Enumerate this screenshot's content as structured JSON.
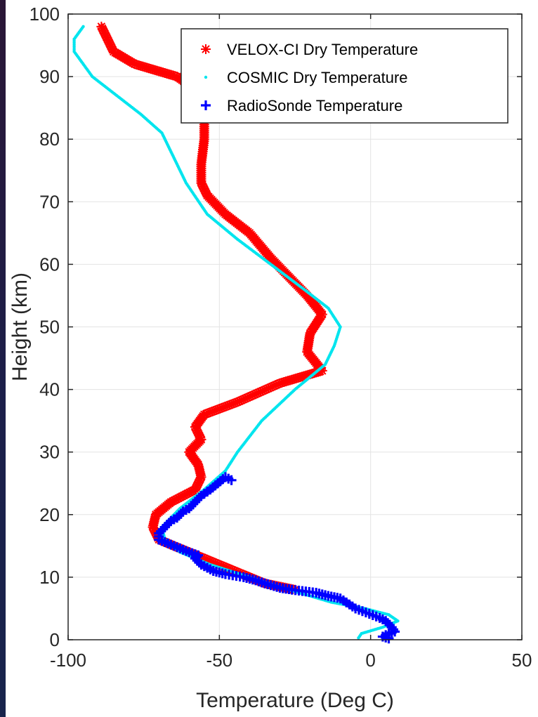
{
  "chart_data": {
    "type": "scatter",
    "title": "",
    "xlabel": "Temperature (Deg C)",
    "ylabel": "Height (km)",
    "xlim": [
      -100,
      50
    ],
    "ylim": [
      0,
      100
    ],
    "xticks": [
      -100,
      -50,
      0,
      50
    ],
    "yticks": [
      0,
      10,
      20,
      30,
      40,
      50,
      60,
      70,
      80,
      90,
      100
    ],
    "xtick_labels": [
      "-100",
      "-50",
      "0",
      "50"
    ],
    "ytick_labels": [
      "0",
      "10",
      "20",
      "30",
      "40",
      "50",
      "60",
      "70",
      "80",
      "90",
      "100"
    ],
    "grid": true,
    "legend_position": "top-right",
    "series": [
      {
        "name": "VELOX-CI Dry Temperature",
        "marker": "asterisk",
        "color": "#ff0000",
        "points": [
          [
            -89,
            98
          ],
          [
            -85,
            94
          ],
          [
            -78,
            92
          ],
          [
            -64,
            90
          ],
          [
            -58,
            88
          ],
          [
            -55,
            85
          ],
          [
            -55,
            80
          ],
          [
            -56,
            76
          ],
          [
            -56,
            73
          ],
          [
            -54,
            71
          ],
          [
            -48,
            68
          ],
          [
            -40,
            65
          ],
          [
            -33,
            61
          ],
          [
            -27,
            58
          ],
          [
            -21,
            55
          ],
          [
            -16,
            52
          ],
          [
            -20,
            49
          ],
          [
            -21,
            46
          ],
          [
            -16,
            43
          ],
          [
            -30,
            41
          ],
          [
            -44,
            38
          ],
          [
            -55,
            36
          ],
          [
            -58,
            34
          ],
          [
            -56,
            32
          ],
          [
            -60,
            30
          ],
          [
            -57,
            28
          ],
          [
            -56,
            26
          ],
          [
            -58,
            24
          ],
          [
            -66,
            22
          ],
          [
            -71,
            20
          ],
          [
            -72,
            18
          ],
          [
            -70,
            16
          ],
          [
            -65,
            15
          ],
          [
            -55,
            13
          ],
          [
            -45,
            11
          ],
          [
            -35,
            9
          ],
          [
            -25,
            8
          ]
        ]
      },
      {
        "name": "COSMIC Dry Temperature",
        "marker": "dot",
        "color": "#00e5ee",
        "points": [
          [
            -95,
            98
          ],
          [
            -98,
            96
          ],
          [
            -98,
            94
          ],
          [
            -92,
            90
          ],
          [
            -84,
            87
          ],
          [
            -76,
            84
          ],
          [
            -69,
            81
          ],
          [
            -65,
            77
          ],
          [
            -61,
            73
          ],
          [
            -54,
            68
          ],
          [
            -44,
            64
          ],
          [
            -33,
            60
          ],
          [
            -22,
            56
          ],
          [
            -14,
            53
          ],
          [
            -10,
            50
          ],
          [
            -12,
            47
          ],
          [
            -15,
            44
          ],
          [
            -25,
            40
          ],
          [
            -36,
            35
          ],
          [
            -44,
            30
          ],
          [
            -48,
            27
          ],
          [
            -55,
            24
          ],
          [
            -63,
            21
          ],
          [
            -69,
            18
          ],
          [
            -68,
            16
          ],
          [
            -63,
            14
          ],
          [
            -53,
            12
          ],
          [
            -40,
            10
          ],
          [
            -27,
            8
          ],
          [
            -13,
            6
          ],
          [
            -2,
            5
          ],
          [
            6,
            4
          ],
          [
            9,
            3
          ],
          [
            4,
            2
          ],
          [
            -3,
            1
          ],
          [
            -4,
            0.3
          ]
        ]
      },
      {
        "name": "RadioSonde Temperature",
        "marker": "plus",
        "color": "#0000ff",
        "points": [
          [
            -46,
            25.5
          ],
          [
            -48,
            26
          ],
          [
            -53,
            24
          ],
          [
            -56,
            23
          ],
          [
            -58,
            22
          ],
          [
            -60,
            21
          ],
          [
            -62,
            20.5
          ],
          [
            -64,
            19.5
          ],
          [
            -66,
            19
          ],
          [
            -68,
            18
          ],
          [
            -70,
            17
          ],
          [
            -70,
            16
          ],
          [
            -65,
            15
          ],
          [
            -60,
            14
          ],
          [
            -57,
            13.5
          ],
          [
            -58,
            13
          ],
          [
            -56,
            12
          ],
          [
            -52,
            11
          ],
          [
            -48,
            10.5
          ],
          [
            -42,
            10
          ],
          [
            -38,
            9.5
          ],
          [
            -35,
            9
          ],
          [
            -30,
            8.3
          ],
          [
            -26,
            8
          ],
          [
            -18,
            7.5
          ],
          [
            -14,
            7
          ],
          [
            -10,
            6.6
          ],
          [
            -5,
            5
          ],
          [
            3,
            3.5
          ],
          [
            5,
            3
          ],
          [
            7,
            2
          ],
          [
            8,
            1.3
          ],
          [
            6,
            1
          ],
          [
            4,
            0.5
          ],
          [
            6,
            0.2
          ]
        ]
      }
    ]
  }
}
